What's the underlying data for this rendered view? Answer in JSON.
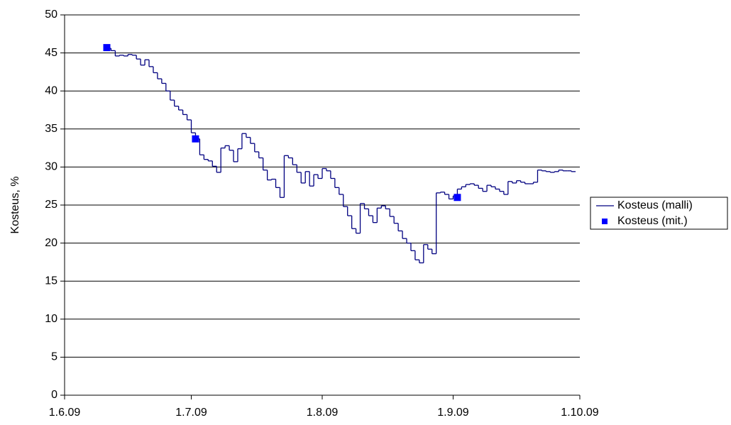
{
  "chart_data": {
    "type": "line",
    "y_label": "Kosteus, %",
    "xlim": [
      "2009-06-01",
      "2009-10-01"
    ],
    "xticks": [
      {
        "value": "2009-06-01",
        "label": "1.6.09"
      },
      {
        "value": "2009-07-01",
        "label": "1.7.09"
      },
      {
        "value": "2009-08-01",
        "label": "1.8.09"
      },
      {
        "value": "2009-09-01",
        "label": "1.9.09"
      },
      {
        "value": "2009-10-01",
        "label": "1.10.09"
      }
    ],
    "ylim": [
      0,
      50
    ],
    "yticks": [
      0,
      5,
      10,
      15,
      20,
      25,
      30,
      35,
      40,
      45,
      50
    ],
    "grid": true,
    "legend": "right",
    "series": [
      {
        "name": "Kosteus (malli)",
        "color": "#000080",
        "step": "post",
        "x": [
          "2009-06-11",
          "2009-06-12",
          "2009-06-13",
          "2009-06-14",
          "2009-06-15",
          "2009-06-16",
          "2009-06-17",
          "2009-06-18",
          "2009-06-19",
          "2009-06-20",
          "2009-06-21",
          "2009-06-22",
          "2009-06-23",
          "2009-06-24",
          "2009-06-25",
          "2009-06-26",
          "2009-06-27",
          "2009-06-28",
          "2009-06-29",
          "2009-06-30",
          "2009-07-01",
          "2009-07-02",
          "2009-07-03",
          "2009-07-04",
          "2009-07-05",
          "2009-07-06",
          "2009-07-07",
          "2009-07-08",
          "2009-07-09",
          "2009-07-10",
          "2009-07-11",
          "2009-07-12",
          "2009-07-13",
          "2009-07-14",
          "2009-07-15",
          "2009-07-16",
          "2009-07-17",
          "2009-07-18",
          "2009-07-19",
          "2009-07-20",
          "2009-07-21",
          "2009-07-22",
          "2009-07-23",
          "2009-07-24",
          "2009-07-25",
          "2009-07-26",
          "2009-07-27",
          "2009-07-28",
          "2009-07-29",
          "2009-07-30",
          "2009-07-31",
          "2009-08-01",
          "2009-08-02",
          "2009-08-03",
          "2009-08-04",
          "2009-08-05",
          "2009-08-06",
          "2009-08-07",
          "2009-08-08",
          "2009-08-09",
          "2009-08-10",
          "2009-08-11",
          "2009-08-12",
          "2009-08-13",
          "2009-08-14",
          "2009-08-15",
          "2009-08-16",
          "2009-08-17",
          "2009-08-18",
          "2009-08-19",
          "2009-08-20",
          "2009-08-21",
          "2009-08-22",
          "2009-08-23",
          "2009-08-24",
          "2009-08-25",
          "2009-08-26",
          "2009-08-27",
          "2009-08-28",
          "2009-08-29",
          "2009-08-30",
          "2009-08-31",
          "2009-09-01",
          "2009-09-02",
          "2009-09-03",
          "2009-09-04",
          "2009-09-05",
          "2009-09-06",
          "2009-09-07",
          "2009-09-08",
          "2009-09-09",
          "2009-09-10",
          "2009-09-11",
          "2009-09-12",
          "2009-09-13",
          "2009-09-14",
          "2009-09-15",
          "2009-09-16",
          "2009-09-17",
          "2009-09-18",
          "2009-09-19",
          "2009-09-20",
          "2009-09-21",
          "2009-09-22",
          "2009-09-23",
          "2009-09-24",
          "2009-09-25",
          "2009-09-26",
          "2009-09-27",
          "2009-09-28",
          "2009-09-29"
        ],
        "values": [
          45.6,
          45.3,
          44.6,
          44.7,
          44.6,
          44.8,
          44.7,
          44.2,
          43.4,
          44.1,
          43.2,
          42.4,
          41.6,
          41.0,
          40.0,
          38.8,
          38.0,
          37.5,
          36.9,
          36.2,
          34.5,
          33.7,
          31.6,
          31.0,
          30.8,
          30.1,
          29.3,
          32.5,
          32.8,
          32.2,
          30.7,
          32.4,
          34.4,
          33.9,
          33.1,
          32.0,
          31.2,
          29.6,
          28.3,
          28.4,
          27.3,
          26.0,
          31.5,
          31.2,
          30.3,
          29.3,
          27.9,
          29.4,
          27.5,
          29.0,
          28.5,
          29.8,
          29.5,
          28.5,
          27.3,
          26.4,
          24.8,
          23.6,
          21.9,
          21.3,
          25.2,
          24.5,
          23.6,
          22.7,
          24.6,
          24.9,
          24.5,
          23.5,
          22.6,
          21.6,
          20.6,
          20.0,
          19.0,
          17.8,
          17.4,
          19.8,
          19.2,
          18.6,
          26.6,
          26.7,
          26.4,
          25.8,
          26.2,
          27.1,
          27.4,
          27.7,
          27.8,
          27.6,
          27.2,
          26.8,
          27.6,
          27.4,
          27.1,
          26.8,
          26.4,
          28.1,
          27.9,
          28.2,
          28.0,
          27.8,
          27.8,
          28.0,
          29.6,
          29.5,
          29.4,
          29.3,
          29.4,
          29.6,
          29.5,
          29.5,
          29.4
        ]
      },
      {
        "name": "Kosteus (mit.)",
        "color": "#0000ff",
        "marker": "square",
        "x": [
          "2009-06-11",
          "2009-07-02",
          "2009-09-02"
        ],
        "values": [
          45.7,
          33.7,
          26.0
        ]
      }
    ]
  }
}
